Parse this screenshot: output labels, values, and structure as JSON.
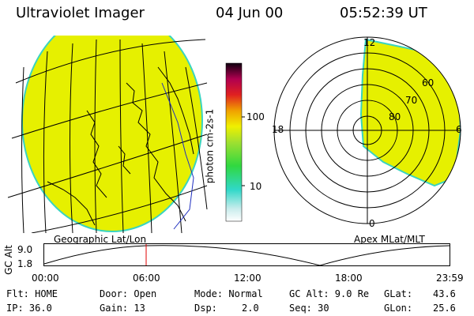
{
  "header": {
    "instrument": "Ultraviolet Imager",
    "date": "04 Jun 00",
    "time": "05:52:39 UT"
  },
  "colorbar": {
    "unit_label": "photon cm-2s-1",
    "ticks": [
      "100",
      "10"
    ]
  },
  "polar_plot": {
    "mlt_labels": {
      "top": "12",
      "left": "18",
      "right": "6",
      "bottom": "0"
    },
    "lat_labels": [
      "60",
      "70",
      "80"
    ]
  },
  "panel_labels": {
    "geo": "Geographic Lat/Lon",
    "apex": "Apex MLat/MLT"
  },
  "altitude_strip": {
    "axis_label": "GC Alt",
    "y_ticks": [
      "9.0",
      "1.8"
    ],
    "x_ticks": [
      "00:00",
      "06:00",
      "12:00",
      "18:00",
      "23:59"
    ]
  },
  "info": {
    "flt": "Flt: HOME",
    "ip": "IP: 36.0",
    "door": "Door: Open",
    "gain": "Gain: 13",
    "mode": "Mode: Normal",
    "dsp_label": "Dsp:",
    "dsp_value": "2.0",
    "gc_alt": "GC Alt: 9.0 Re",
    "seq": "Seq: 30",
    "glat_label": "GLat:",
    "glat_value": "43.6",
    "glon_label": "GLon:",
    "glon_value": "25.6"
  },
  "colors": {
    "image_fill": "#e6f000",
    "image_edge": "#3ad4c0"
  }
}
